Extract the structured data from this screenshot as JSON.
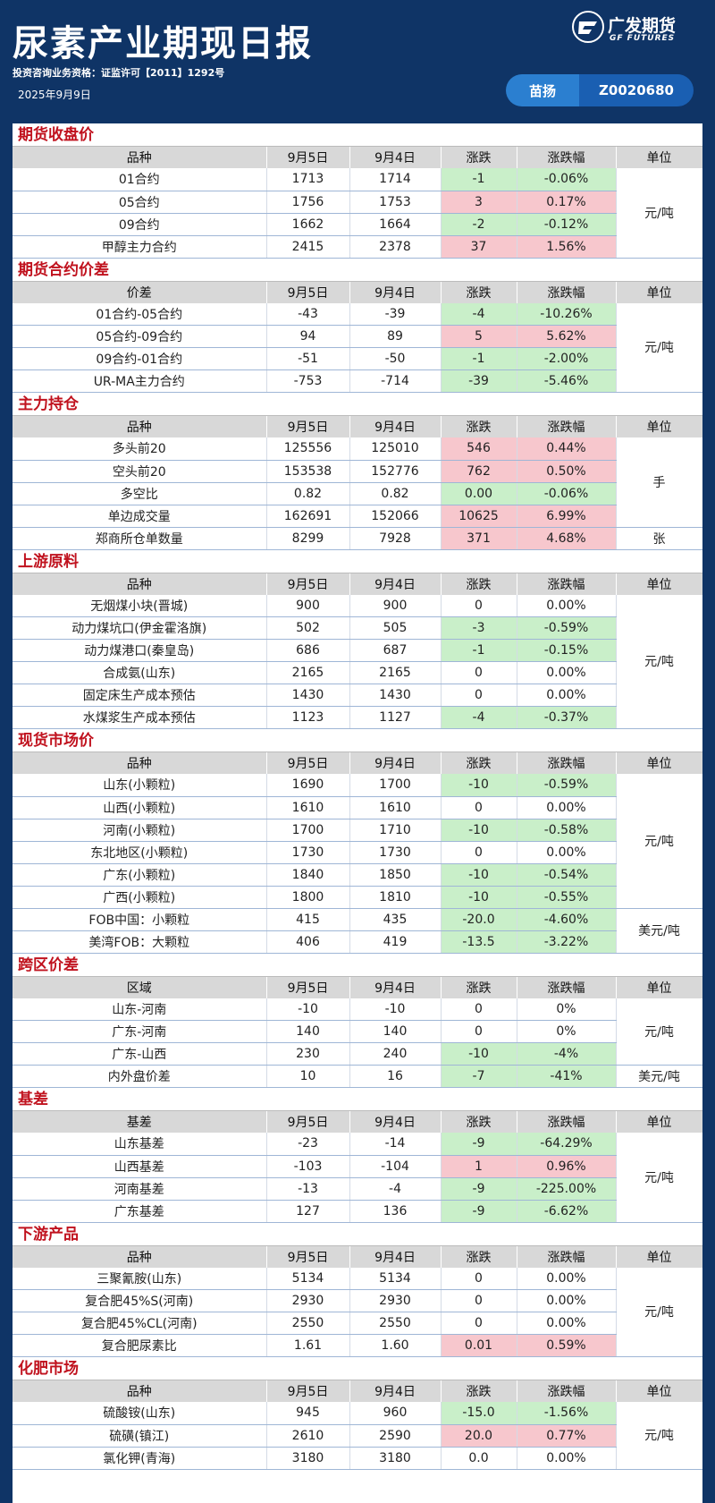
{
  "header": {
    "title": "尿素产业期现日报",
    "qualification": "投资咨询业务资格：证监许可【2011】1292号",
    "date": "2025年9月9日",
    "logo_cn": "广发期货",
    "logo_en": "GF FUTURES",
    "analyst_name": "苗扬",
    "analyst_id": "Z0020680"
  },
  "colors": {
    "up": "#f7c7cd",
    "down": "#c9efc9",
    "section_title": "#c0121e",
    "header_bg": "#0f3466"
  },
  "sections": [
    {
      "title": "期货收盘价",
      "columns": [
        "品种",
        "9月5日",
        "9月4日",
        "涨跌",
        "涨跌幅",
        "单位"
      ],
      "rows": [
        {
          "name": "01合约",
          "v1": "1713",
          "v2": "1714",
          "chg": "-1",
          "pct": "-0.06%",
          "dir": "down"
        },
        {
          "name": "05合约",
          "v1": "1756",
          "v2": "1753",
          "chg": "3",
          "pct": "0.17%",
          "dir": "up"
        },
        {
          "name": "09合约",
          "v1": "1662",
          "v2": "1664",
          "chg": "-2",
          "pct": "-0.12%",
          "dir": "down"
        },
        {
          "name": "甲醇主力合约",
          "v1": "2415",
          "v2": "2378",
          "chg": "37",
          "pct": "1.56%",
          "dir": "up"
        }
      ],
      "units": [
        {
          "label": "元/吨",
          "span": 4
        }
      ]
    },
    {
      "title": "期货合约价差",
      "columns": [
        "价差",
        "9月5日",
        "9月4日",
        "涨跌",
        "涨跌幅",
        "单位"
      ],
      "rows": [
        {
          "name": "01合约-05合约",
          "v1": "-43",
          "v2": "-39",
          "chg": "-4",
          "pct": "-10.26%",
          "dir": "down"
        },
        {
          "name": "05合约-09合约",
          "v1": "94",
          "v2": "89",
          "chg": "5",
          "pct": "5.62%",
          "dir": "up"
        },
        {
          "name": "09合约-01合约",
          "v1": "-51",
          "v2": "-50",
          "chg": "-1",
          "pct": "-2.00%",
          "dir": "down"
        },
        {
          "name": "UR-MA主力合约",
          "v1": "-753",
          "v2": "-714",
          "chg": "-39",
          "pct": "-5.46%",
          "dir": "down"
        }
      ],
      "units": [
        {
          "label": "元/吨",
          "span": 4
        }
      ]
    },
    {
      "title": "主力持仓",
      "columns": [
        "品种",
        "9月5日",
        "9月4日",
        "涨跌",
        "涨跌幅",
        "单位"
      ],
      "rows": [
        {
          "name": "多头前20",
          "v1": "125556",
          "v2": "125010",
          "chg": "546",
          "pct": "0.44%",
          "dir": "up"
        },
        {
          "name": "空头前20",
          "v1": "153538",
          "v2": "152776",
          "chg": "762",
          "pct": "0.50%",
          "dir": "up"
        },
        {
          "name": "多空比",
          "v1": "0.82",
          "v2": "0.82",
          "chg": "0.00",
          "pct": "-0.06%",
          "dir": "down"
        },
        {
          "name": "单边成交量",
          "v1": "162691",
          "v2": "152066",
          "chg": "10625",
          "pct": "6.99%",
          "dir": "up"
        },
        {
          "name": "郑商所仓单数量",
          "v1": "8299",
          "v2": "7928",
          "chg": "371",
          "pct": "4.68%",
          "dir": "up"
        }
      ],
      "units": [
        {
          "label": "手",
          "span": 4
        },
        {
          "label": "张",
          "span": 1
        }
      ]
    },
    {
      "title": "上游原料",
      "columns": [
        "品种",
        "9月5日",
        "9月4日",
        "涨跌",
        "涨跌幅",
        "单位"
      ],
      "rows": [
        {
          "name": "无烟煤小块(晋城)",
          "v1": "900",
          "v2": "900",
          "chg": "0",
          "pct": "0.00%",
          "dir": ""
        },
        {
          "name": "动力煤坑口(伊金霍洛旗)",
          "v1": "502",
          "v2": "505",
          "chg": "-3",
          "pct": "-0.59%",
          "dir": "down"
        },
        {
          "name": "动力煤港口(秦皇岛)",
          "v1": "686",
          "v2": "687",
          "chg": "-1",
          "pct": "-0.15%",
          "dir": "down"
        },
        {
          "name": "合成氨(山东)",
          "v1": "2165",
          "v2": "2165",
          "chg": "0",
          "pct": "0.00%",
          "dir": ""
        },
        {
          "name": "固定床生产成本预估",
          "v1": "1430",
          "v2": "1430",
          "chg": "0",
          "pct": "0.00%",
          "dir": ""
        },
        {
          "name": "水煤浆生产成本预估",
          "v1": "1123",
          "v2": "1127",
          "chg": "-4",
          "pct": "-0.37%",
          "dir": "down"
        }
      ],
      "units": [
        {
          "label": "元/吨",
          "span": 6
        }
      ]
    },
    {
      "title": "现货市场价",
      "columns": [
        "品种",
        "9月5日",
        "9月4日",
        "涨跌",
        "涨跌幅",
        "单位"
      ],
      "rows": [
        {
          "name": "山东(小颗粒)",
          "v1": "1690",
          "v2": "1700",
          "chg": "-10",
          "pct": "-0.59%",
          "dir": "down"
        },
        {
          "name": "山西(小颗粒)",
          "v1": "1610",
          "v2": "1610",
          "chg": "0",
          "pct": "0.00%",
          "dir": ""
        },
        {
          "name": "河南(小颗粒)",
          "v1": "1700",
          "v2": "1710",
          "chg": "-10",
          "pct": "-0.58%",
          "dir": "down"
        },
        {
          "name": "东北地区(小颗粒)",
          "v1": "1730",
          "v2": "1730",
          "chg": "0",
          "pct": "0.00%",
          "dir": ""
        },
        {
          "name": "广东(小颗粒)",
          "v1": "1840",
          "v2": "1850",
          "chg": "-10",
          "pct": "-0.54%",
          "dir": "down"
        },
        {
          "name": "广西(小颗粒)",
          "v1": "1800",
          "v2": "1810",
          "chg": "-10",
          "pct": "-0.55%",
          "dir": "down"
        },
        {
          "name": "FOB中国：小颗粒",
          "v1": "415",
          "v2": "435",
          "chg": "-20.0",
          "pct": "-4.60%",
          "dir": "down"
        },
        {
          "name": "美湾FOB：大颗粒",
          "v1": "406",
          "v2": "419",
          "chg": "-13.5",
          "pct": "-3.22%",
          "dir": "down"
        }
      ],
      "units": [
        {
          "label": "元/吨",
          "span": 6
        },
        {
          "label": "美元/吨",
          "span": 2
        }
      ]
    },
    {
      "title": "跨区价差",
      "columns": [
        "区域",
        "9月5日",
        "9月4日",
        "涨跌",
        "涨跌幅",
        "单位"
      ],
      "rows": [
        {
          "name": "山东-河南",
          "v1": "-10",
          "v2": "-10",
          "chg": "0",
          "pct": "0%",
          "dir": ""
        },
        {
          "name": "广东-河南",
          "v1": "140",
          "v2": "140",
          "chg": "0",
          "pct": "0%",
          "dir": ""
        },
        {
          "name": "广东-山西",
          "v1": "230",
          "v2": "240",
          "chg": "-10",
          "pct": "-4%",
          "dir": "down"
        },
        {
          "name": "内外盘价差",
          "v1": "10",
          "v2": "16",
          "chg": "-7",
          "pct": "-41%",
          "dir": "down"
        }
      ],
      "units": [
        {
          "label": "元/吨",
          "span": 3
        },
        {
          "label": "美元/吨",
          "span": 1
        }
      ]
    },
    {
      "title": "基差",
      "columns": [
        "基差",
        "9月5日",
        "9月4日",
        "涨跌",
        "涨跌幅",
        "单位"
      ],
      "rows": [
        {
          "name": "山东基差",
          "v1": "-23",
          "v2": "-14",
          "chg": "-9",
          "pct": "-64.29%",
          "dir": "down"
        },
        {
          "name": "山西基差",
          "v1": "-103",
          "v2": "-104",
          "chg": "1",
          "pct": "0.96%",
          "dir": "up"
        },
        {
          "name": "河南基差",
          "v1": "-13",
          "v2": "-4",
          "chg": "-9",
          "pct": "-225.00%",
          "dir": "down"
        },
        {
          "name": "广东基差",
          "v1": "127",
          "v2": "136",
          "chg": "-9",
          "pct": "-6.62%",
          "dir": "down"
        }
      ],
      "units": [
        {
          "label": "元/吨",
          "span": 4
        }
      ]
    },
    {
      "title": "下游产品",
      "columns": [
        "品种",
        "9月5日",
        "9月4日",
        "涨跌",
        "涨跌幅",
        "单位"
      ],
      "rows": [
        {
          "name": "三聚氰胺(山东)",
          "v1": "5134",
          "v2": "5134",
          "chg": "0",
          "pct": "0.00%",
          "dir": ""
        },
        {
          "name": "复合肥45%S(河南)",
          "v1": "2930",
          "v2": "2930",
          "chg": "0",
          "pct": "0.00%",
          "dir": ""
        },
        {
          "name": "复合肥45%CL(河南)",
          "v1": "2550",
          "v2": "2550",
          "chg": "0",
          "pct": "0.00%",
          "dir": ""
        },
        {
          "name": "复合肥尿素比",
          "v1": "1.61",
          "v2": "1.60",
          "chg": "0.01",
          "pct": "0.59%",
          "dir": "up"
        }
      ],
      "units": [
        {
          "label": "元/吨",
          "span": 4
        }
      ]
    },
    {
      "title": "化肥市场",
      "columns": [
        "品种",
        "9月5日",
        "9月4日",
        "涨跌",
        "涨跌幅",
        "单位"
      ],
      "rows": [
        {
          "name": "硫酸铵(山东)",
          "v1": "945",
          "v2": "960",
          "chg": "-15.0",
          "pct": "-1.56%",
          "dir": "down"
        },
        {
          "name": "硫磺(镇江)",
          "v1": "2610",
          "v2": "2590",
          "chg": "20.0",
          "pct": "0.77%",
          "dir": "up"
        },
        {
          "name": "氯化钾(青海)",
          "v1": "3180",
          "v2": "3180",
          "chg": "0.0",
          "pct": "0.00%",
          "dir": ""
        }
      ],
      "units": [
        {
          "label": "元/吨",
          "span": 3
        }
      ]
    }
  ]
}
